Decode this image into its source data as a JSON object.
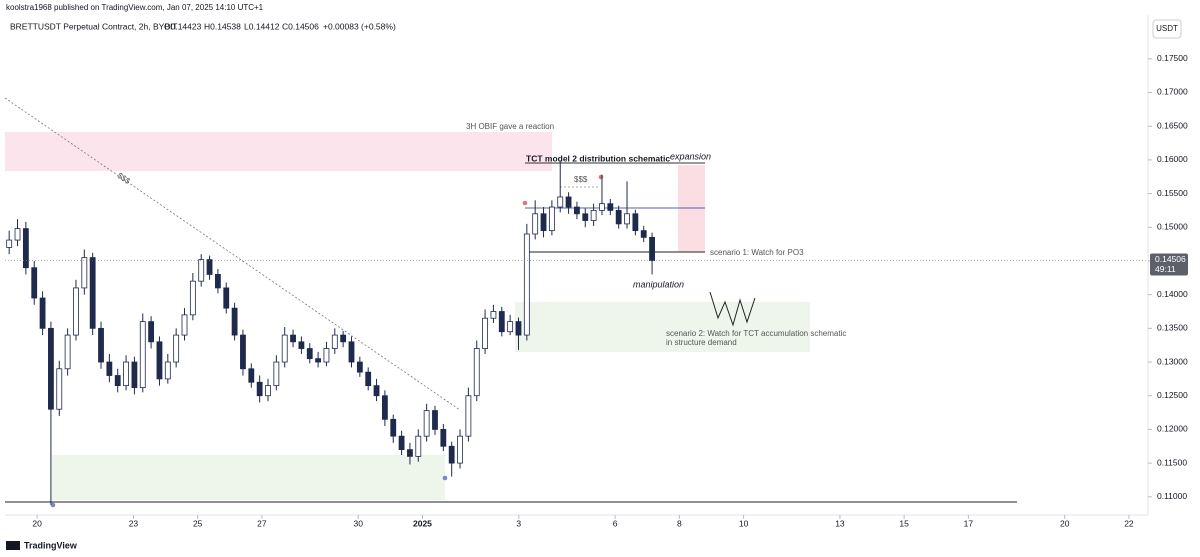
{
  "header": {
    "publisher": "koolstra1968 published on TradingView.com, Jan 07, 2025 14:10 UTC+1",
    "symbol": "BRETTUSDT Perpetual Contract, 2h, BYBIT",
    "open": "O0.14423",
    "high": "H0.14538",
    "low": "L0.14412",
    "close": "C0.14506",
    "change": "+0.00083 (+0.58%)"
  },
  "footer": {
    "brand": "TradingView"
  },
  "chart_data": {
    "type": "candlestick",
    "color": "#1f2a4d",
    "grid": false,
    "currency": "USDT",
    "last_price": 0.14506,
    "countdown": "49:11",
    "annotations": [
      "3H OBIF gave a reaction",
      "TCT model 2 distribution schematic",
      "expansion",
      "$$$",
      "$$$",
      "scenario 1: Watch for PO3",
      "manipulation",
      "scenario 2: Watch for TCT accumulation schematic",
      "in structure demand"
    ],
    "xlim": [
      19,
      54.5
    ],
    "xticks": [
      {
        "value": 20,
        "label": "20"
      },
      {
        "value": 23,
        "label": "23"
      },
      {
        "value": 25,
        "label": "25"
      },
      {
        "value": 27,
        "label": "27"
      },
      {
        "value": 30,
        "label": "30"
      },
      {
        "value": 32,
        "label": "2025"
      },
      {
        "value": 35,
        "label": "3"
      },
      {
        "value": 38,
        "label": "6"
      },
      {
        "value": 40,
        "label": "8"
      },
      {
        "value": 42,
        "label": "10"
      },
      {
        "value": 45,
        "label": "13"
      },
      {
        "value": 47,
        "label": "15"
      },
      {
        "value": 49,
        "label": "17"
      },
      {
        "value": 52,
        "label": "20"
      },
      {
        "value": 54,
        "label": "22"
      }
    ],
    "ylim": [
      0.1073,
      0.1815
    ],
    "yticks": [
      {
        "value": 0.11,
        "label": "0.11000"
      },
      {
        "value": 0.115,
        "label": "0.11500"
      },
      {
        "value": 0.12,
        "label": "0.12000"
      },
      {
        "value": 0.125,
        "label": "0.12500"
      },
      {
        "value": 0.13,
        "label": "0.13000"
      },
      {
        "value": 0.135,
        "label": "0.13500"
      },
      {
        "value": 0.14,
        "label": "0.14000"
      },
      {
        "value": 0.145,
        "label": "0.14500"
      },
      {
        "value": 0.15,
        "label": "0.15000"
      },
      {
        "value": 0.155,
        "label": "0.15500"
      },
      {
        "value": 0.16,
        "label": "0.16000"
      },
      {
        "value": 0.165,
        "label": "0.16500"
      },
      {
        "value": 0.17,
        "label": "0.17000"
      },
      {
        "value": 0.175,
        "label": "0.17500"
      }
    ],
    "x": [
      19.13,
      19.39,
      19.65,
      19.91,
      20.17,
      20.43,
      20.69,
      20.95,
      21.21,
      21.47,
      21.73,
      21.99,
      22.25,
      22.51,
      22.77,
      23.03,
      23.29,
      23.55,
      23.81,
      24.07,
      24.33,
      24.59,
      24.85,
      25.11,
      25.37,
      25.63,
      25.89,
      26.15,
      26.41,
      26.67,
      26.93,
      27.19,
      27.45,
      27.71,
      27.97,
      28.23,
      28.49,
      28.75,
      29.01,
      29.27,
      29.53,
      29.79,
      30.05,
      30.31,
      30.57,
      30.83,
      31.09,
      31.35,
      31.61,
      31.87,
      32.13,
      32.39,
      32.65,
      32.91,
      33.17,
      33.43,
      33.69,
      33.95,
      34.21,
      34.47,
      34.73,
      34.99,
      35.25,
      35.51,
      35.77,
      36.03,
      36.29,
      36.55,
      36.81,
      37.07,
      37.33,
      37.59,
      37.85,
      38.11,
      38.37,
      38.63,
      38.89,
      39.15
    ],
    "open": [
      0.147,
      0.1481,
      0.1498,
      0.144,
      0.1395,
      0.135,
      0.123,
      0.129,
      0.134,
      0.141,
      0.1455,
      0.135,
      0.13,
      0.128,
      0.1265,
      0.13,
      0.1262,
      0.136,
      0.133,
      0.1275,
      0.13,
      0.134,
      0.137,
      0.142,
      0.1452,
      0.143,
      0.141,
      0.138,
      0.134,
      0.129,
      0.127,
      0.125,
      0.1265,
      0.13,
      0.134,
      0.133,
      0.132,
      0.1305,
      0.13,
      0.132,
      0.134,
      0.133,
      0.13,
      0.1285,
      0.1265,
      0.125,
      0.1215,
      0.119,
      0.117,
      0.116,
      0.119,
      0.1228,
      0.12,
      0.1175,
      0.115,
      0.119,
      0.125,
      0.132,
      0.1365,
      0.1375,
      0.1345,
      0.136,
      0.134,
      0.149,
      0.152,
      0.1495,
      0.153,
      0.1545,
      0.153,
      0.152,
      0.151,
      0.1525,
      0.1535,
      0.1525,
      0.1505,
      0.152,
      0.1495,
      0.1485
    ],
    "high": [
      0.1495,
      0.1512,
      0.1508,
      0.145,
      0.1405,
      0.136,
      0.1302,
      0.135,
      0.1422,
      0.1467,
      0.1462,
      0.136,
      0.1312,
      0.129,
      0.131,
      0.1308,
      0.1372,
      0.1368,
      0.1338,
      0.1312,
      0.135,
      0.138,
      0.1432,
      0.146,
      0.1458,
      0.1438,
      0.1418,
      0.1388,
      0.1348,
      0.1298,
      0.128,
      0.1275,
      0.131,
      0.1352,
      0.1348,
      0.1338,
      0.1328,
      0.1315,
      0.133,
      0.135,
      0.1346,
      0.1338,
      0.1308,
      0.1292,
      0.1275,
      0.1258,
      0.1222,
      0.1198,
      0.118,
      0.12,
      0.1238,
      0.1235,
      0.1208,
      0.1182,
      0.12,
      0.1262,
      0.1332,
      0.1378,
      0.1385,
      0.1382,
      0.137,
      0.1366,
      0.1505,
      0.154,
      0.153,
      0.154,
      0.1599,
      0.1552,
      0.1538,
      0.1528,
      0.1535,
      0.1578,
      0.1542,
      0.1532,
      0.1568,
      0.1526,
      0.1502,
      0.1492
    ],
    "low": [
      0.146,
      0.1472,
      0.143,
      0.1385,
      0.134,
      0.1088,
      0.122,
      0.128,
      0.1332,
      0.14,
      0.134,
      0.129,
      0.127,
      0.1255,
      0.1258,
      0.1252,
      0.1255,
      0.132,
      0.1265,
      0.1268,
      0.1292,
      0.1332,
      0.1362,
      0.1412,
      0.1422,
      0.1402,
      0.1372,
      0.1332,
      0.128,
      0.1262,
      0.124,
      0.1242,
      0.1258,
      0.1292,
      0.1322,
      0.1312,
      0.1298,
      0.1292,
      0.1294,
      0.1312,
      0.1322,
      0.1292,
      0.1278,
      0.1258,
      0.1242,
      0.1205,
      0.118,
      0.1162,
      0.1148,
      0.1152,
      0.1182,
      0.1192,
      0.1168,
      0.113,
      0.1142,
      0.1182,
      0.1242,
      0.1312,
      0.1358,
      0.1338,
      0.134,
      0.1318,
      0.1332,
      0.1482,
      0.1485,
      0.1488,
      0.1522,
      0.152,
      0.1512,
      0.15,
      0.1502,
      0.1518,
      0.1518,
      0.1498,
      0.1498,
      0.1488,
      0.1478,
      0.143
    ],
    "close": [
      0.1481,
      0.1498,
      0.144,
      0.1395,
      0.135,
      0.123,
      0.129,
      0.134,
      0.141,
      0.1455,
      0.135,
      0.13,
      0.128,
      0.1265,
      0.13,
      0.1262,
      0.136,
      0.133,
      0.1275,
      0.13,
      0.134,
      0.137,
      0.142,
      0.1452,
      0.143,
      0.141,
      0.138,
      0.134,
      0.129,
      0.127,
      0.125,
      0.1265,
      0.13,
      0.134,
      0.133,
      0.132,
      0.1305,
      0.13,
      0.132,
      0.134,
      0.133,
      0.13,
      0.1285,
      0.1265,
      0.125,
      0.1215,
      0.119,
      0.117,
      0.116,
      0.119,
      0.1228,
      0.12,
      0.1175,
      0.115,
      0.119,
      0.125,
      0.132,
      0.1365,
      0.1375,
      0.1345,
      0.136,
      0.134,
      0.149,
      0.152,
      0.1495,
      0.153,
      0.1545,
      0.153,
      0.152,
      0.151,
      0.1525,
      0.1535,
      0.1525,
      0.1505,
      0.152,
      0.1495,
      0.1485,
      0.14506
    ]
  }
}
